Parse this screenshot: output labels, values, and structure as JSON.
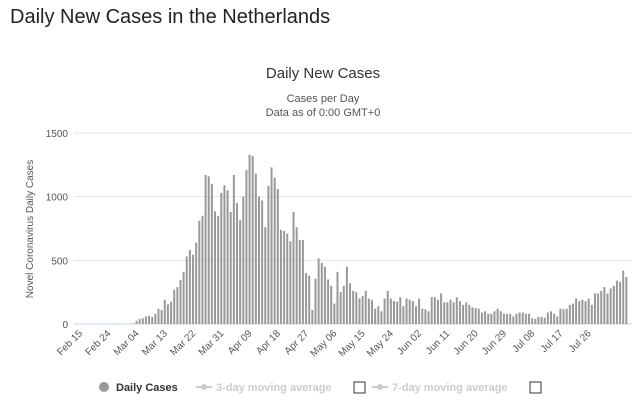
{
  "page": {
    "title": "Daily New Cases in the Netherlands"
  },
  "chart_data": {
    "type": "bar",
    "title": "Daily New Cases",
    "subtitle": [
      "Cases per Day",
      "Data as of 0:00 GMT+0"
    ],
    "xlabel": "",
    "ylabel": "Novel Coronavirus Daily Cases",
    "ylim": [
      0,
      1500
    ],
    "yticks": [
      "0",
      "500",
      "1000",
      "1500"
    ],
    "ytick_values": [
      0,
      500,
      1000,
      1500
    ],
    "start_date": "Feb 15",
    "tick_every_days": 9,
    "xticks": [
      "Feb 15",
      "Feb 24",
      "Mar 04",
      "Mar 13",
      "Mar 22",
      "Mar 31",
      "Apr 09",
      "Apr 18",
      "Apr 27",
      "May 06",
      "May 15",
      "May 24",
      "Jun 02",
      "Jun 11",
      "Jun 20",
      "Jun 29",
      "Jul 08",
      "Jul 17",
      "Jul 26"
    ],
    "grid": true,
    "color": "#999999",
    "values": [
      0,
      0,
      0,
      0,
      0,
      0,
      0,
      0,
      0,
      0,
      0,
      0,
      1,
      1,
      0,
      0,
      2,
      5,
      25,
      40,
      45,
      60,
      65,
      55,
      80,
      120,
      110,
      190,
      155,
      175,
      270,
      290,
      345,
      410,
      530,
      580,
      545,
      640,
      810,
      850,
      1170,
      1160,
      1100,
      885,
      850,
      1030,
      1090,
      1050,
      880,
      1170,
      950,
      815,
      1000,
      1210,
      1330,
      1320,
      1180,
      1000,
      970,
      760,
      1085,
      1230,
      1150,
      1060,
      740,
      730,
      710,
      650,
      880,
      760,
      660,
      660,
      400,
      380,
      110,
      355,
      515,
      480,
      450,
      350,
      300,
      160,
      410,
      250,
      300,
      450,
      320,
      260,
      250,
      200,
      220,
      260,
      200,
      190,
      120,
      140,
      100,
      200,
      260,
      200,
      180,
      175,
      210,
      140,
      200,
      190,
      180,
      140,
      200,
      120,
      115,
      100,
      210,
      210,
      190,
      240,
      170,
      170,
      190,
      170,
      210,
      180,
      150,
      170,
      150,
      130,
      125,
      120,
      90,
      100,
      80,
      80,
      100,
      120,
      100,
      80,
      80,
      80,
      60,
      80,
      90,
      90,
      80,
      80,
      45,
      40,
      55,
      55,
      50,
      90,
      100,
      80,
      60,
      120,
      115,
      120,
      150,
      160,
      200,
      180,
      190,
      180,
      200,
      150,
      240,
      240,
      260,
      290,
      240,
      280,
      300,
      340,
      330,
      420,
      370
    ],
    "legend": [
      {
        "label": "Daily Cases",
        "active": true
      },
      {
        "label": "3-day moving average",
        "active": false
      },
      {
        "label": "7-day moving average",
        "active": false
      }
    ],
    "legend_placement": "bottom"
  }
}
